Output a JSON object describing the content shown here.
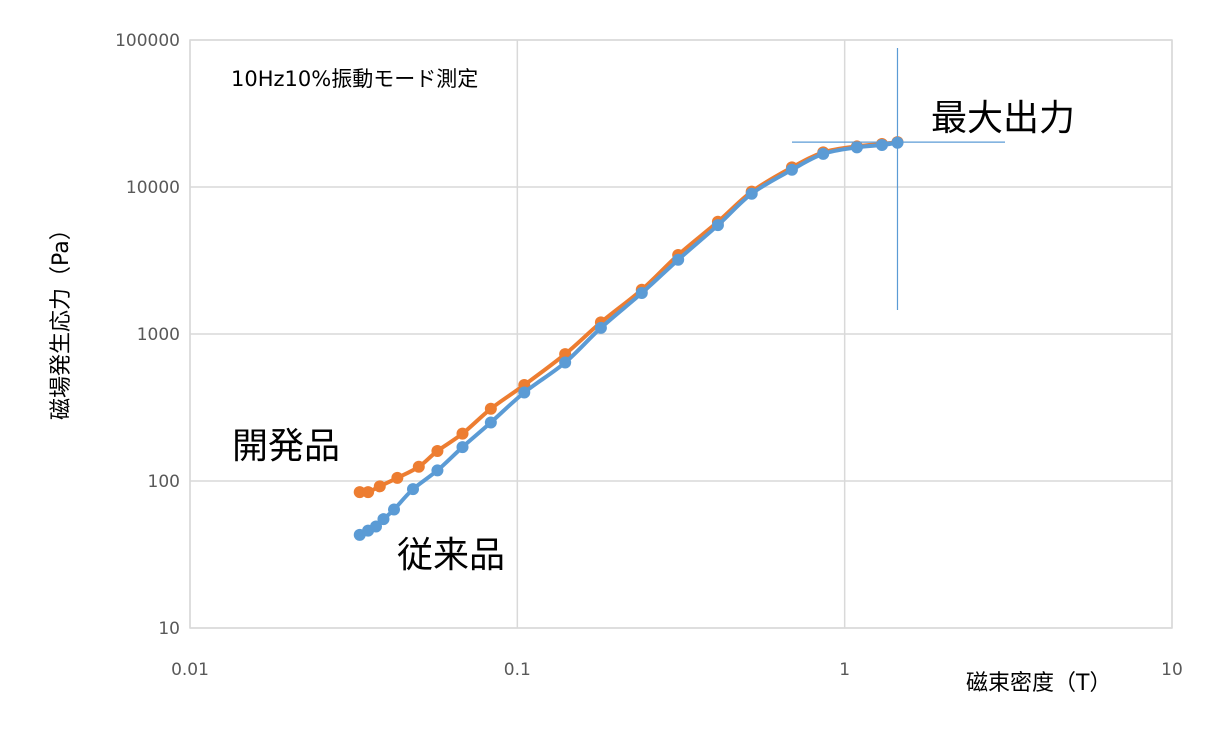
{
  "chart_data": {
    "type": "scatter",
    "title": "",
    "xlabel": "磁束密度（T）",
    "ylabel": "磁場発生応力（Pa）",
    "xscale": "log",
    "yscale": "log",
    "xlim": [
      0.01,
      10
    ],
    "ylim": [
      10,
      100000
    ],
    "x_ticks": [
      "0.01",
      "0.1",
      "1",
      "10"
    ],
    "y_ticks": [
      "10",
      "100",
      "1000",
      "10000",
      "100000"
    ],
    "grid": true,
    "legend": "none",
    "colors": {
      "開発品": "#ED7D31",
      "従来品": "#5B9BD5",
      "crosshair": "#5B9BD5",
      "grid": "#D9D9D9"
    },
    "annotations": {
      "condition": "10Hz10%振動モード測定",
      "max_output": "最大出力",
      "developed": "開発品",
      "conventional": "従来品"
    },
    "series": [
      {
        "name": "開発品",
        "x": [
          0.033,
          0.035,
          0.038,
          0.043,
          0.05,
          0.057,
          0.068,
          0.083,
          0.105,
          0.14,
          0.18,
          0.24,
          0.31,
          0.41,
          0.52,
          0.69,
          0.86,
          1.09,
          1.3,
          1.45
        ],
        "y": [
          84,
          84,
          92,
          105,
          125,
          160,
          210,
          310,
          450,
          730,
          1200,
          2000,
          3450,
          5800,
          9300,
          13600,
          17200,
          18900,
          19600,
          20200
        ]
      },
      {
        "name": "従来品",
        "x": [
          0.033,
          0.035,
          0.037,
          0.039,
          0.042,
          0.048,
          0.057,
          0.068,
          0.083,
          0.105,
          0.14,
          0.18,
          0.24,
          0.31,
          0.41,
          0.52,
          0.69,
          0.86,
          1.09,
          1.3,
          1.45
        ],
        "y": [
          43,
          46,
          49,
          55,
          64,
          88,
          118,
          170,
          250,
          400,
          640,
          1100,
          1900,
          3200,
          5500,
          9000,
          13100,
          16800,
          18600,
          19300,
          20000
        ]
      }
    ],
    "max_output_point": {
      "x": 1.45,
      "y": 20200
    }
  }
}
